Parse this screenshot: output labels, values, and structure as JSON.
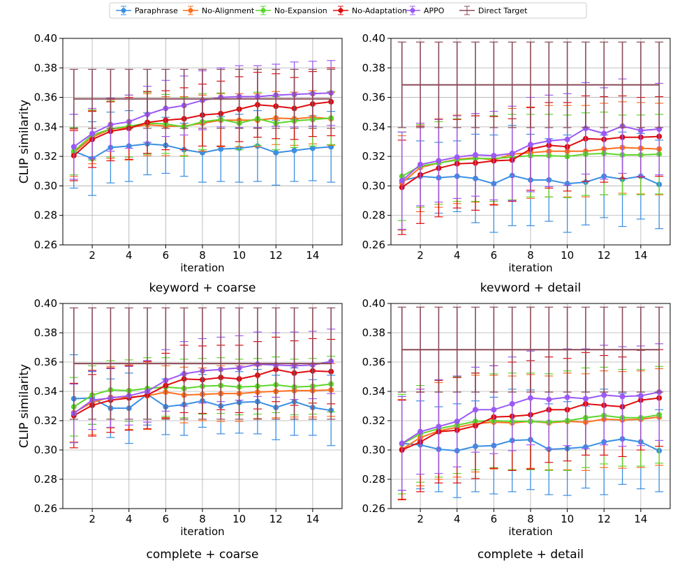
{
  "legend": [
    "Paraphrase",
    "No-Alignment",
    "No-Expansion",
    "No-Adaptation",
    "APPO",
    "Direct Target"
  ],
  "colors": {
    "Paraphrase": "#3b8fe3",
    "No-Alignment": "#ff6f1e",
    "No-Expansion": "#5dd62a",
    "No-Adaptation": "#dd0c10",
    "APPO": "#9b59f5",
    "Direct Target": "#8a4a57"
  },
  "chart_data": [
    {
      "type": "line",
      "title": "keyword + coarse",
      "xlabel": "iteration",
      "ylabel": "CLIP similarity",
      "ylim": [
        0.26,
        0.4
      ],
      "xlim": [
        0.4,
        15.6
      ],
      "xticks": [
        "2",
        "4",
        "6",
        "8",
        "10",
        "12",
        "14"
      ],
      "yticks": [
        "0.26",
        "0.28",
        "0.30",
        "0.32",
        "0.34",
        "0.36",
        "0.38",
        "0.40"
      ],
      "x": [
        1,
        2,
        3,
        4,
        5,
        6,
        7,
        8,
        9,
        10,
        11,
        12,
        13,
        14,
        15
      ],
      "series": [
        {
          "name": "Paraphrase",
          "values": [
            0.3235,
            0.3185,
            0.326,
            0.327,
            0.3285,
            0.3275,
            0.3245,
            0.3225,
            0.325,
            0.3255,
            0.327,
            0.3225,
            0.324,
            0.3255,
            0.3265
          ],
          "err": [
            0.025,
            0.025,
            0.024,
            0.024,
            0.021,
            0.019,
            0.018,
            0.02,
            0.022,
            0.023,
            0.024,
            0.022,
            0.021,
            0.022,
            0.024
          ]
        },
        {
          "name": "No-Alignment",
          "values": [
            0.3225,
            0.333,
            0.3385,
            0.3395,
            0.3415,
            0.3405,
            0.3405,
            0.3425,
            0.3445,
            0.3445,
            0.3445,
            0.346,
            0.3455,
            0.3465,
            0.3455
          ],
          "err": [
            0.016,
            0.018,
            0.02,
            0.022,
            0.021,
            0.02,
            0.02,
            0.019,
            0.018,
            0.018,
            0.018,
            0.018,
            0.018,
            0.018,
            0.018
          ]
        },
        {
          "name": "No-Expansion",
          "values": [
            0.3235,
            0.3345,
            0.3385,
            0.3405,
            0.3425,
            0.342,
            0.34,
            0.3435,
            0.345,
            0.3425,
            0.3455,
            0.3425,
            0.344,
            0.345,
            0.346
          ],
          "err": [
            0.016,
            0.017,
            0.019,
            0.021,
            0.021,
            0.02,
            0.02,
            0.019,
            0.018,
            0.018,
            0.018,
            0.018,
            0.018,
            0.018,
            0.018
          ]
        },
        {
          "name": "No-Adaptation",
          "values": [
            0.3205,
            0.3315,
            0.337,
            0.339,
            0.343,
            0.3445,
            0.3455,
            0.348,
            0.349,
            0.352,
            0.355,
            0.354,
            0.3525,
            0.3555,
            0.357
          ],
          "err": [
            0.017,
            0.019,
            0.02,
            0.021,
            0.021,
            0.02,
            0.021,
            0.021,
            0.022,
            0.022,
            0.022,
            0.022,
            0.021,
            0.022,
            0.023
          ]
        },
        {
          "name": "APPO",
          "values": [
            0.3265,
            0.3355,
            0.3415,
            0.3435,
            0.3485,
            0.3525,
            0.3545,
            0.358,
            0.36,
            0.3605,
            0.3605,
            0.3615,
            0.362,
            0.3625,
            0.363
          ],
          "err": [
            0.022,
            0.017,
            0.018,
            0.018,
            0.019,
            0.019,
            0.02,
            0.02,
            0.02,
            0.021,
            0.021,
            0.021,
            0.022,
            0.022,
            0.022
          ]
        },
        {
          "name": "Direct Target",
          "values": [
            0.359,
            0.359,
            0.359,
            0.359,
            0.359,
            0.359,
            0.359,
            0.359,
            0.359,
            0.359,
            0.359,
            0.359,
            0.359,
            0.359,
            0.359
          ],
          "err": [
            0.02,
            0.02,
            0.02,
            0.02,
            0.02,
            0.02,
            0.02,
            0.02,
            0.02,
            0.02,
            0.02,
            0.02,
            0.02,
            0.02,
            0.02
          ]
        }
      ]
    },
    {
      "type": "line",
      "title": "kevword + detail",
      "xlabel": "iteration",
      "ylabel": "",
      "ylim": [
        0.26,
        0.4
      ],
      "xlim": [
        0.4,
        15.6
      ],
      "xticks": [
        "2",
        "4",
        "6",
        "8",
        "10",
        "12",
        "14"
      ],
      "yticks": [
        "0.26",
        "0.28",
        "0.30",
        "0.32",
        "0.34",
        "0.36",
        "0.38",
        "0.40"
      ],
      "x": [
        1,
        2,
        3,
        4,
        5,
        6,
        7,
        8,
        9,
        10,
        11,
        12,
        13,
        14,
        15
      ],
      "series": [
        {
          "name": "Paraphrase",
          "values": [
            0.3035,
            0.3065,
            0.3055,
            0.3065,
            0.305,
            0.3015,
            0.307,
            0.304,
            0.304,
            0.3015,
            0.3025,
            0.3065,
            0.3045,
            0.3065,
            0.301
          ],
          "err": [
            0.033,
            0.024,
            0.024,
            0.024,
            0.03,
            0.033,
            0.034,
            0.031,
            0.028,
            0.033,
            0.029,
            0.028,
            0.032,
            0.029,
            0.03
          ]
        },
        {
          "name": "No-Alignment",
          "values": [
            0.302,
            0.3125,
            0.3155,
            0.318,
            0.319,
            0.3175,
            0.3215,
            0.3225,
            0.3235,
            0.3235,
            0.3235,
            0.325,
            0.326,
            0.3255,
            0.325
          ],
          "err": [
            0.032,
            0.03,
            0.03,
            0.03,
            0.03,
            0.03,
            0.031,
            0.031,
            0.031,
            0.031,
            0.031,
            0.031,
            0.031,
            0.031,
            0.031
          ]
        },
        {
          "name": "No-Expansion",
          "values": [
            0.3065,
            0.3135,
            0.3155,
            0.3175,
            0.3185,
            0.3185,
            0.3195,
            0.3205,
            0.3205,
            0.32,
            0.3215,
            0.322,
            0.321,
            0.321,
            0.3215
          ],
          "err": [
            0.03,
            0.028,
            0.028,
            0.028,
            0.029,
            0.029,
            0.029,
            0.028,
            0.028,
            0.028,
            0.028,
            0.028,
            0.027,
            0.027,
            0.027
          ]
        },
        {
          "name": "No-Adaptation",
          "values": [
            0.299,
            0.3075,
            0.312,
            0.315,
            0.3155,
            0.317,
            0.3175,
            0.325,
            0.3275,
            0.3265,
            0.332,
            0.3315,
            0.333,
            0.333,
            0.3335
          ],
          "err": [
            0.032,
            0.033,
            0.033,
            0.03,
            0.032,
            0.03,
            0.028,
            0.028,
            0.029,
            0.03,
            0.029,
            0.029,
            0.028,
            0.027,
            0.027
          ]
        },
        {
          "name": "APPO",
          "values": [
            0.3035,
            0.3145,
            0.317,
            0.3195,
            0.321,
            0.3205,
            0.322,
            0.328,
            0.3305,
            0.3315,
            0.339,
            0.3355,
            0.3405,
            0.3375,
            0.3385
          ],
          "err": [
            0.033,
            0.028,
            0.028,
            0.028,
            0.028,
            0.03,
            0.032,
            0.032,
            0.031,
            0.031,
            0.031,
            0.031,
            0.032,
            0.031,
            0.031
          ]
        },
        {
          "name": "Direct Target",
          "values": [
            0.3685,
            0.3685,
            0.3685,
            0.3685,
            0.3685,
            0.3685,
            0.3685,
            0.3685,
            0.3685,
            0.3685,
            0.3685,
            0.3685,
            0.3685,
            0.3685,
            0.3685
          ],
          "err": [
            0.029,
            0.029,
            0.029,
            0.029,
            0.029,
            0.029,
            0.029,
            0.029,
            0.029,
            0.029,
            0.029,
            0.029,
            0.029,
            0.029,
            0.029
          ]
        }
      ]
    },
    {
      "type": "line",
      "title": "complete + coarse",
      "xlabel": "iteration",
      "ylabel": "CLIP similarity",
      "ylim": [
        0.26,
        0.4
      ],
      "xlim": [
        0.4,
        15.6
      ],
      "xticks": [
        "2",
        "4",
        "6",
        "8",
        "10",
        "12",
        "14"
      ],
      "yticks": [
        "0.26",
        "0.28",
        "0.30",
        "0.32",
        "0.34",
        "0.36",
        "0.38",
        "0.40"
      ],
      "x": [
        1,
        2,
        3,
        4,
        5,
        6,
        7,
        8,
        9,
        10,
        11,
        12,
        13,
        14,
        15
      ],
      "series": [
        {
          "name": "Paraphrase",
          "values": [
            0.335,
            0.3355,
            0.3285,
            0.3285,
            0.338,
            0.3295,
            0.331,
            0.3335,
            0.33,
            0.3325,
            0.333,
            0.329,
            0.333,
            0.329,
            0.327
          ],
          "err": [
            0.03,
            0.018,
            0.02,
            0.024,
            0.021,
            0.019,
            0.021,
            0.018,
            0.019,
            0.021,
            0.022,
            0.022,
            0.023,
            0.019,
            0.024
          ]
        },
        {
          "name": "No-Alignment",
          "values": [
            0.3255,
            0.3325,
            0.336,
            0.336,
            0.337,
            0.3395,
            0.3375,
            0.338,
            0.3385,
            0.3385,
            0.3395,
            0.34,
            0.3405,
            0.3405,
            0.341
          ],
          "err": [
            0.02,
            0.022,
            0.021,
            0.022,
            0.023,
            0.018,
            0.019,
            0.018,
            0.019,
            0.019,
            0.018,
            0.018,
            0.018,
            0.018,
            0.018
          ]
        },
        {
          "name": "No-Expansion",
          "values": [
            0.3295,
            0.3375,
            0.341,
            0.3405,
            0.342,
            0.343,
            0.342,
            0.3435,
            0.344,
            0.343,
            0.3435,
            0.3445,
            0.343,
            0.3435,
            0.345
          ],
          "err": [
            0.02,
            0.02,
            0.02,
            0.021,
            0.021,
            0.02,
            0.02,
            0.019,
            0.019,
            0.019,
            0.019,
            0.019,
            0.019,
            0.019,
            0.019
          ]
        },
        {
          "name": "No-Adaptation",
          "values": [
            0.3235,
            0.3305,
            0.334,
            0.3355,
            0.3375,
            0.344,
            0.3485,
            0.348,
            0.3495,
            0.3485,
            0.351,
            0.355,
            0.3525,
            0.354,
            0.3535
          ],
          "err": [
            0.022,
            0.021,
            0.022,
            0.022,
            0.023,
            0.022,
            0.023,
            0.023,
            0.022,
            0.023,
            0.023,
            0.022,
            0.022,
            0.022,
            0.022
          ]
        },
        {
          "name": "APPO",
          "values": [
            0.325,
            0.334,
            0.3355,
            0.337,
            0.34,
            0.3475,
            0.352,
            0.354,
            0.355,
            0.356,
            0.3585,
            0.358,
            0.3575,
            0.358,
            0.3605
          ],
          "err": [
            0.02,
            0.02,
            0.02,
            0.02,
            0.021,
            0.021,
            0.022,
            0.022,
            0.022,
            0.022,
            0.022,
            0.022,
            0.023,
            0.023,
            0.022
          ]
        },
        {
          "name": "Direct Target",
          "values": [
            0.359,
            0.359,
            0.359,
            0.359,
            0.359,
            0.359,
            0.359,
            0.359,
            0.359,
            0.359,
            0.359,
            0.359,
            0.359,
            0.359,
            0.359
          ],
          "err": [
            0.038,
            0.038,
            0.038,
            0.038,
            0.038,
            0.038,
            0.038,
            0.038,
            0.038,
            0.038,
            0.038,
            0.038,
            0.038,
            0.038,
            0.038
          ]
        }
      ]
    },
    {
      "type": "line",
      "title": "complete + detail",
      "xlabel": "iteration",
      "ylabel": "",
      "ylim": [
        0.26,
        0.4
      ],
      "xlim": [
        0.4,
        15.6
      ],
      "xticks": [
        "2",
        "4",
        "6",
        "8",
        "10",
        "12",
        "14"
      ],
      "yticks": [
        "0.26",
        "0.28",
        "0.30",
        "0.32",
        "0.34",
        "0.36",
        "0.38",
        "0.40"
      ],
      "x": [
        1,
        2,
        3,
        4,
        5,
        6,
        7,
        8,
        9,
        10,
        11,
        12,
        13,
        14,
        15
      ],
      "series": [
        {
          "name": "Paraphrase",
          "values": [
            0.3045,
            0.3035,
            0.3005,
            0.2995,
            0.3025,
            0.303,
            0.3065,
            0.307,
            0.3005,
            0.301,
            0.302,
            0.3055,
            0.3075,
            0.3055,
            0.2995
          ],
          "err": [
            0.032,
            0.03,
            0.029,
            0.032,
            0.031,
            0.033,
            0.035,
            0.034,
            0.031,
            0.032,
            0.028,
            0.036,
            0.031,
            0.032,
            0.028
          ]
        },
        {
          "name": "No-Alignment",
          "values": [
            0.3005,
            0.3085,
            0.313,
            0.3155,
            0.318,
            0.319,
            0.3185,
            0.3195,
            0.3185,
            0.3195,
            0.319,
            0.321,
            0.3205,
            0.321,
            0.3225
          ],
          "err": [
            0.034,
            0.033,
            0.033,
            0.034,
            0.033,
            0.032,
            0.032,
            0.032,
            0.032,
            0.033,
            0.033,
            0.033,
            0.033,
            0.033,
            0.033
          ]
        },
        {
          "name": "No-Expansion",
          "values": [
            0.304,
            0.311,
            0.3145,
            0.317,
            0.3195,
            0.32,
            0.3195,
            0.3195,
            0.319,
            0.32,
            0.322,
            0.3235,
            0.322,
            0.322,
            0.324
          ],
          "err": [
            0.034,
            0.033,
            0.033,
            0.033,
            0.033,
            0.032,
            0.033,
            0.033,
            0.033,
            0.034,
            0.034,
            0.033,
            0.033,
            0.033,
            0.033
          ]
        },
        {
          "name": "No-Adaptation",
          "values": [
            0.3,
            0.3055,
            0.3125,
            0.3135,
            0.3165,
            0.3225,
            0.323,
            0.324,
            0.3275,
            0.3275,
            0.3315,
            0.3305,
            0.3295,
            0.334,
            0.3355
          ],
          "err": [
            0.034,
            0.034,
            0.035,
            0.036,
            0.036,
            0.035,
            0.037,
            0.037,
            0.036,
            0.035,
            0.035,
            0.034,
            0.034,
            0.034,
            0.033
          ]
        },
        {
          "name": "APPO",
          "values": [
            0.3045,
            0.3125,
            0.316,
            0.3195,
            0.3275,
            0.3275,
            0.3315,
            0.3355,
            0.3345,
            0.336,
            0.335,
            0.3375,
            0.3365,
            0.337,
            0.3395
          ],
          "err": [
            0.032,
            0.029,
            0.032,
            0.031,
            0.029,
            0.03,
            0.032,
            0.032,
            0.034,
            0.033,
            0.034,
            0.034,
            0.034,
            0.034,
            0.033
          ]
        },
        {
          "name": "Direct Target",
          "values": [
            0.3685,
            0.3685,
            0.3685,
            0.3685,
            0.3685,
            0.3685,
            0.3685,
            0.3685,
            0.3685,
            0.3685,
            0.3685,
            0.3685,
            0.3685,
            0.3685,
            0.3685
          ],
          "err": [
            0.029,
            0.029,
            0.029,
            0.029,
            0.029,
            0.029,
            0.029,
            0.029,
            0.029,
            0.029,
            0.029,
            0.029,
            0.029,
            0.029,
            0.029
          ]
        }
      ]
    }
  ]
}
